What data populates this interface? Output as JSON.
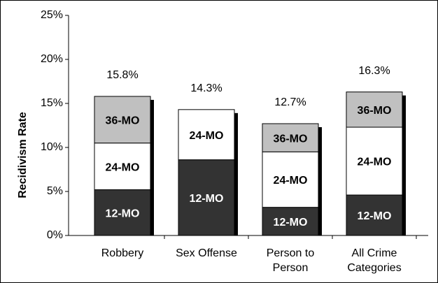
{
  "chart_data": {
    "type": "stacked_bar",
    "y_label": "Recidivism Rate",
    "categories": [
      "Robbery",
      "Sex Offense",
      "Person to Person",
      "All Crime Categories"
    ],
    "series": [
      {
        "name": "12-MO",
        "color": "#333333",
        "text_color": "#ffffff",
        "values": [
          5.2,
          8.6,
          3.2,
          4.6
        ]
      },
      {
        "name": "24-MO",
        "color": "#ffffff",
        "text_color": "#000000",
        "values": [
          5.3,
          5.7,
          6.3,
          7.7
        ]
      },
      {
        "name": "36-MO",
        "color": "#c0c0c0",
        "text_color": "#000000",
        "values": [
          5.3,
          null,
          3.2,
          4.0
        ]
      }
    ],
    "totals": {
      "values": [
        15.8,
        14.3,
        12.7,
        16.3
      ],
      "value_labels": [
        "15.8%",
        "14.3%",
        "12.7%",
        "16.3%"
      ]
    },
    "ylim": [
      0,
      25
    ],
    "yticks": [
      {
        "value": 0,
        "label": "0%"
      },
      {
        "value": 5,
        "label": "5%"
      },
      {
        "value": 10,
        "label": "10%"
      },
      {
        "value": 15,
        "label": "15%"
      },
      {
        "value": 20,
        "label": "20%"
      },
      {
        "value": 25,
        "label": "25%"
      }
    ],
    "grid": false
  }
}
